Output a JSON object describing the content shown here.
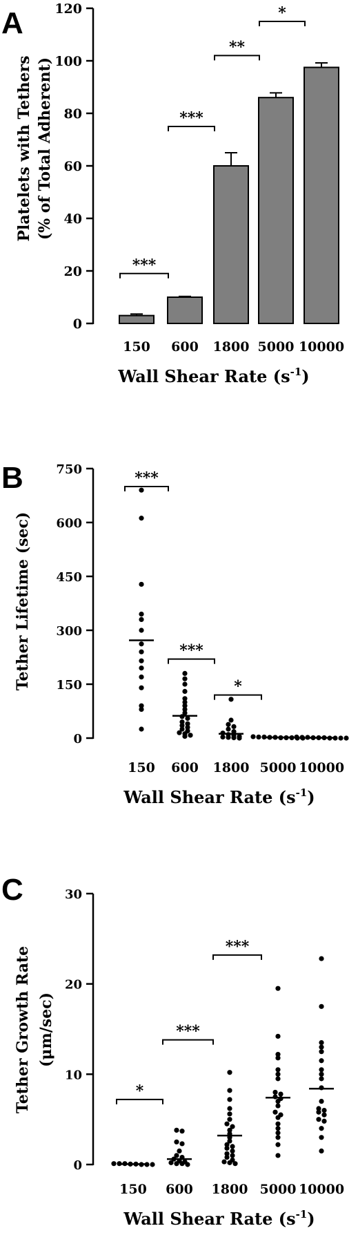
{
  "chart_data": [
    {
      "panel": "A",
      "type": "bar",
      "categories": [
        "150",
        "600",
        "1800",
        "5000",
        "10000"
      ],
      "values": [
        3,
        10,
        60,
        86,
        97.5
      ],
      "errors": [
        0.6,
        0.3,
        5,
        1.8,
        1.7
      ],
      "ylabel": [
        "Platelets with Tethers",
        "(% of Total Adherent)"
      ],
      "xlabel": "Wall Shear Rate (s",
      "xlabel_sup": "-1",
      "xlabel_close": ")",
      "ylim": [
        0,
        120
      ],
      "yticks": [
        "0",
        "20",
        "40",
        "60",
        "80",
        "100",
        "120"
      ],
      "significance": [
        {
          "from": 0,
          "to": 1,
          "y": 19,
          "label": "***"
        },
        {
          "from": 1,
          "to": 2,
          "y": 75,
          "label": "***"
        },
        {
          "from": 2,
          "to": 3,
          "y": 102,
          "label": "**"
        },
        {
          "from": 3,
          "to": 4,
          "y": 115,
          "label": "*"
        }
      ],
      "color": "#7f7f7f"
    },
    {
      "panel": "B",
      "type": "scatter",
      "categories": [
        "150",
        "600",
        "1800",
        "5000",
        "10000"
      ],
      "points": [
        [
          690,
          612,
          428,
          345,
          330,
          300,
          262,
          240,
          215,
          195,
          170,
          140,
          90,
          80,
          25
        ],
        [
          180,
          165,
          150,
          130,
          110,
          100,
          90,
          80,
          70,
          60,
          55,
          45,
          40,
          35,
          30,
          25,
          20,
          15,
          12,
          8,
          5
        ],
        [
          108,
          50,
          38,
          32,
          25,
          18,
          14,
          10,
          8,
          5,
          3,
          2,
          1,
          0
        ],
        [
          4,
          3,
          3,
          2,
          2,
          1,
          1,
          1,
          0,
          0
        ],
        [
          3,
          2,
          2,
          1,
          1,
          1,
          0,
          0,
          0,
          0
        ]
      ],
      "means": [
        272,
        62,
        12,
        2,
        1
      ],
      "ylabel": [
        "Tether Lifetime (sec)"
      ],
      "xlabel": "Wall Shear Rate (s",
      "xlabel_sup": "-1",
      "xlabel_close": ")",
      "ylim": [
        0,
        750
      ],
      "yticks": [
        "0",
        "150",
        "300",
        "450",
        "600",
        "750"
      ],
      "significance": [
        {
          "from": 0,
          "to": 1,
          "y": 700,
          "label": "***"
        },
        {
          "from": 1,
          "to": 2,
          "y": 220,
          "label": "***"
        },
        {
          "from": 2,
          "to": 3,
          "y": 120,
          "label": "*"
        }
      ]
    },
    {
      "panel": "C",
      "type": "scatter",
      "categories": [
        "150",
        "600",
        "1800",
        "5000",
        "10000"
      ],
      "points": [
        [
          0.1,
          0.1,
          0.1,
          0.05,
          0.05,
          0,
          0,
          0
        ],
        [
          3.8,
          3.7,
          2.5,
          2.3,
          1.5,
          1.0,
          0.8,
          0.6,
          0.4,
          0.3,
          0.2,
          0.1,
          0.1,
          0
        ],
        [
          10.2,
          8.2,
          7.2,
          6.2,
          5.6,
          5.0,
          4.5,
          4.2,
          3.8,
          3.4,
          3.0,
          2.6,
          2.2,
          2.0,
          1.8,
          1.5,
          1.2,
          1.0,
          0.8,
          0.5,
          0.3,
          0.2,
          0.1
        ],
        [
          19.5,
          14.2,
          12.2,
          11.8,
          10.5,
          10.0,
          9.5,
          8.0,
          7.8,
          7.5,
          7.3,
          7.0,
          6.5,
          5.8,
          5.5,
          5.2,
          4.5,
          4.0,
          3.5,
          3.0,
          2.2,
          1.0
        ],
        [
          22.8,
          17.5,
          13.5,
          13.0,
          12.5,
          11.5,
          10.5,
          10.0,
          9.5,
          8.5,
          7.0,
          6.2,
          6.0,
          5.8,
          5.5,
          5.0,
          4.8,
          4.0,
          3.0,
          1.5
        ]
      ],
      "means": [
        0.05,
        0.6,
        3.2,
        7.4,
        8.4
      ],
      "ylabel": [
        "Tether Growth Rate",
        "(μm/sec)"
      ],
      "xlabel": "Wall Shear Rate (s",
      "xlabel_sup": "-1",
      "xlabel_close": ")",
      "ylim": [
        0,
        30
      ],
      "yticks": [
        "0",
        "10",
        "20",
        "30"
      ],
      "significance": [
        {
          "from": 0,
          "to": 1,
          "y": 7.2,
          "label": "*"
        },
        {
          "from": 1,
          "to": 2,
          "y": 13.8,
          "label": "***"
        },
        {
          "from": 2,
          "to": 3,
          "y": 23.2,
          "label": "***"
        }
      ]
    }
  ]
}
